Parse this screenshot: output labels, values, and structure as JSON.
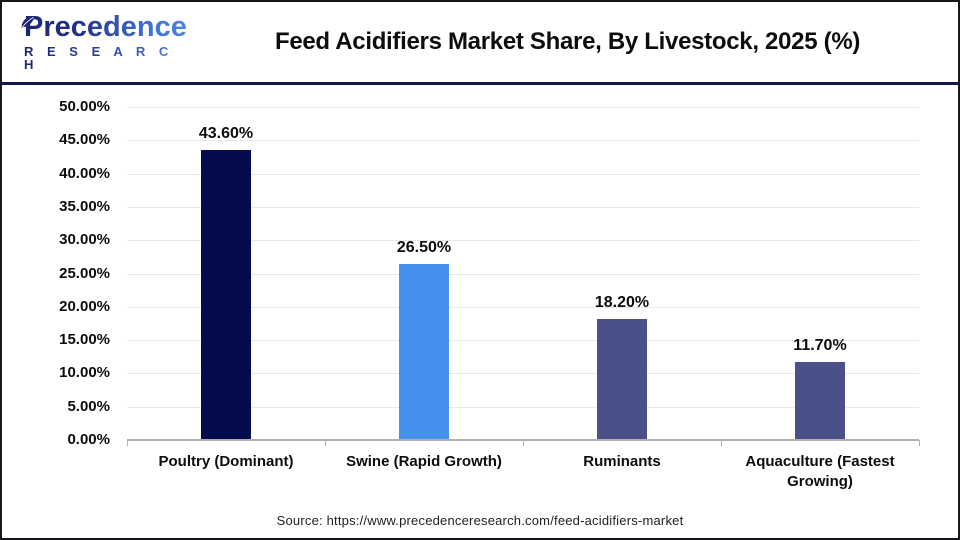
{
  "header": {
    "logo": {
      "brand_top": "Precedence",
      "brand_bottom": "R E S E A R C H"
    },
    "title": "Feed Acidifiers Market Share, By Livestock, 2025 (%)"
  },
  "chart_data": {
    "type": "bar",
    "title": "Feed Acidifiers Market Share, By Livestock, 2025 (%)",
    "categories": [
      "Poultry (Dominant)",
      "Swine (Rapid Growth)",
      "Ruminants",
      "Aquaculture (Fastest Growing)"
    ],
    "values": [
      43.6,
      26.5,
      18.2,
      11.7
    ],
    "value_labels": [
      "43.60%",
      "26.50%",
      "18.20%",
      "11.70%"
    ],
    "bar_colors": [
      "#040b4e",
      "#4590ec",
      "#4a5189",
      "#4a5189"
    ],
    "xlabel": "",
    "ylabel": "",
    "ylim": [
      0,
      50
    ],
    "ytick_step": 5,
    "ytick_labels": [
      "0.00%",
      "5.00%",
      "10.00%",
      "15.00%",
      "20.00%",
      "25.00%",
      "30.00%",
      "35.00%",
      "40.00%",
      "45.00%",
      "50.00%"
    ],
    "grid": true,
    "legend_position": "none"
  },
  "footer": {
    "source": "Source: https://www.precedenceresearch.com/feed-acidifiers-market"
  },
  "colors": {
    "separator": "#141650",
    "axis_line": "#b0b0b0",
    "gridline": "#e8e8e8",
    "logo_navy": "#1b2672",
    "logo_blue": "#4b86e0"
  }
}
